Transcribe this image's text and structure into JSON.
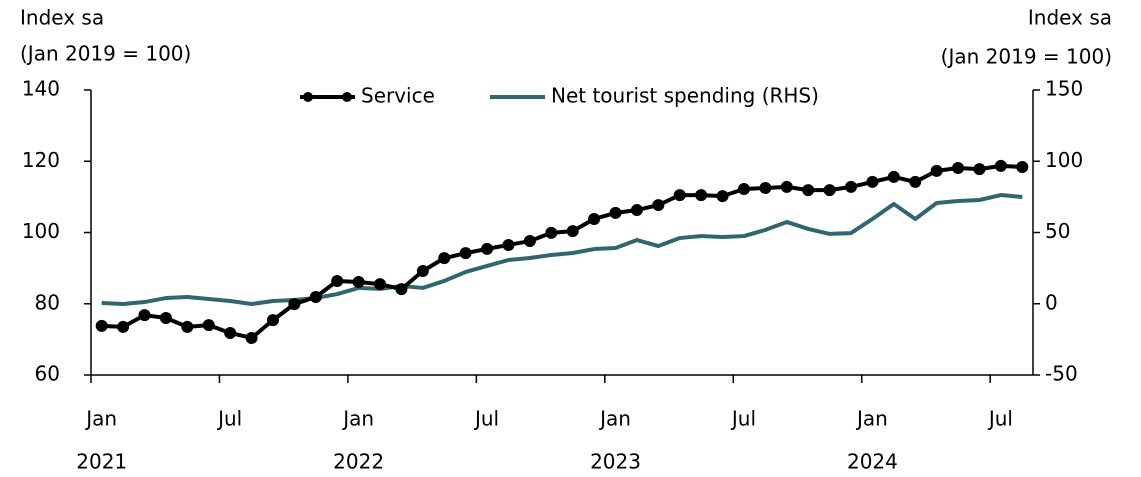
{
  "chart_data": {
    "type": "line",
    "ylabel": [
      "Index sa",
      "(Jan 2019 = 100)"
    ],
    "y2label": [
      "Index sa",
      "(Jan 2019 = 100)"
    ],
    "x": [
      "2021-01",
      "2021-02",
      "2021-03",
      "2021-04",
      "2021-05",
      "2021-06",
      "2021-07",
      "2021-08",
      "2021-09",
      "2021-10",
      "2021-11",
      "2021-12",
      "2022-01",
      "2022-02",
      "2022-03",
      "2022-04",
      "2022-05",
      "2022-06",
      "2022-07",
      "2022-08",
      "2022-09",
      "2022-10",
      "2022-11",
      "2022-12",
      "2023-01",
      "2023-02",
      "2023-03",
      "2023-04",
      "2023-05",
      "2023-06",
      "2023-07",
      "2023-08",
      "2023-09",
      "2023-10",
      "2023-11",
      "2023-12",
      "2024-01",
      "2024-02",
      "2024-03",
      "2024-04",
      "2024-05",
      "2024-06",
      "2024-07",
      "2024-08"
    ],
    "xticks": [
      {
        "value": "2021-01",
        "label": "Jan"
      },
      {
        "value": "2021-07",
        "label": "Jul"
      },
      {
        "value": "2022-01",
        "label": "Jan"
      },
      {
        "value": "2022-07",
        "label": "Jul"
      },
      {
        "value": "2023-01",
        "label": "Jan"
      },
      {
        "value": "2023-07",
        "label": "Jul"
      },
      {
        "value": "2024-01",
        "label": "Jan"
      },
      {
        "value": "2024-07",
        "label": "Jul"
      }
    ],
    "year_labels": [
      {
        "value": "2021-01",
        "label": "2021"
      },
      {
        "value": "2022-01",
        "label": "2022"
      },
      {
        "value": "2023-01",
        "label": "2023"
      },
      {
        "value": "2024-01",
        "label": "2024"
      }
    ],
    "series": [
      {
        "name": "Service",
        "color": "#000000",
        "markers": true,
        "values": [
          73.8,
          73.5,
          76.8,
          76.0,
          73.5,
          74.0,
          71.8,
          70.4,
          75.4,
          79.9,
          81.9,
          86.4,
          86.1,
          85.5,
          84.1,
          89.2,
          92.8,
          94.2,
          95.4,
          96.5,
          97.6,
          99.9,
          100.4,
          103.8,
          105.5,
          106.3,
          107.7,
          110.5,
          110.5,
          110.2,
          112.2,
          112.5,
          112.8,
          111.9,
          111.9,
          112.8,
          114.2,
          115.6,
          114.2,
          117.3,
          118.1,
          117.8,
          118.7,
          118.4
        ]
      },
      {
        "name": "Net tourist spending (RHS)",
        "color": "#316671",
        "axis": "y2",
        "markers": false,
        "values": [
          0.5,
          -0.2,
          1.2,
          4.0,
          4.7,
          3.3,
          1.9,
          -0.2,
          1.9,
          2.6,
          4.0,
          6.8,
          11.1,
          10.4,
          12.5,
          11.1,
          16.0,
          22.3,
          26.5,
          30.7,
          32.1,
          34.2,
          35.6,
          38.4,
          39.1,
          44.7,
          40.5,
          46.1,
          47.5,
          46.8,
          47.5,
          51.8,
          57.4,
          52.5,
          49.0,
          49.6,
          59.5,
          70.0,
          59.5,
          70.7,
          72.1,
          72.8,
          76.3,
          74.9
        ]
      }
    ],
    "ylim": [
      60,
      140
    ],
    "yticks": [
      60,
      80,
      100,
      120,
      140
    ],
    "y2lim": [
      -50,
      150
    ],
    "y2ticks": [
      -50,
      0,
      50,
      100,
      150
    ],
    "legend": "top"
  }
}
